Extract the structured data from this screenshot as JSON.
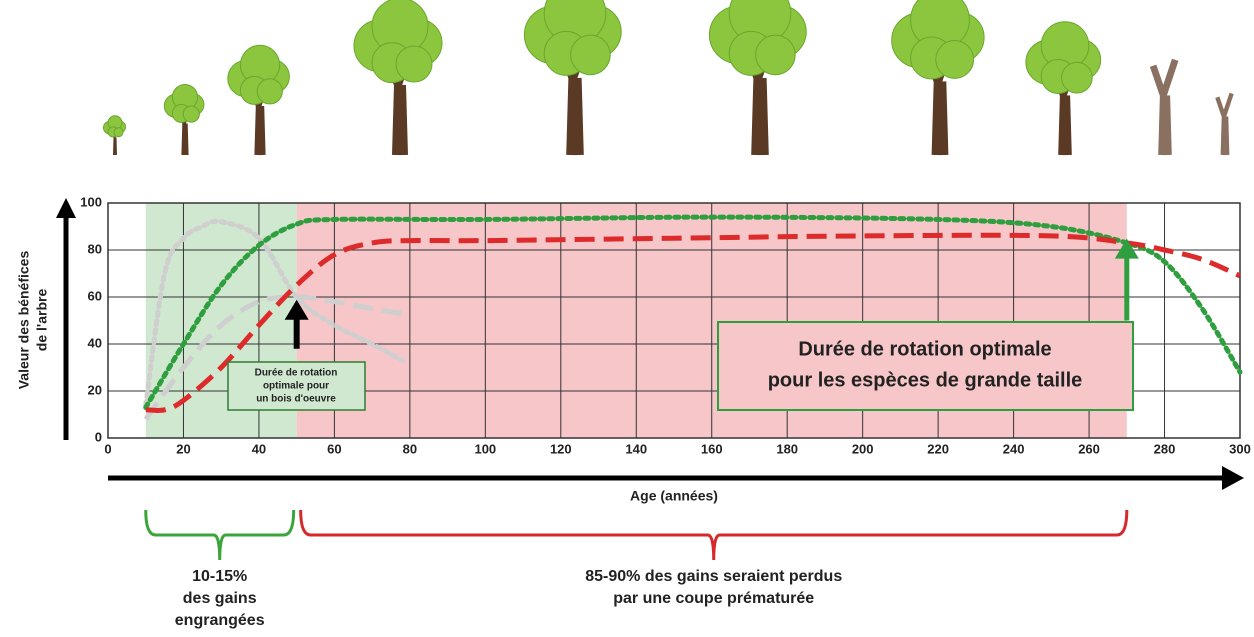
{
  "chart_data": {
    "type": "line",
    "y_label": [
      "Valeur des bénéfices",
      "de l'arbre"
    ],
    "x_label": "Age (années)",
    "xlim": [
      0,
      300
    ],
    "ylim": [
      0,
      100
    ],
    "xticks": [
      0,
      20,
      40,
      60,
      80,
      100,
      120,
      140,
      160,
      180,
      200,
      220,
      240,
      260,
      280,
      300
    ],
    "yticks": [
      0,
      20,
      40,
      60,
      80,
      100
    ],
    "grid": true,
    "regions": [
      {
        "x": [
          10,
          50
        ],
        "color": "#cfe8cf",
        "bracket_color": "#3aa53a",
        "label": [
          "10-15%",
          "des gains",
          "engrangées"
        ]
      },
      {
        "x": [
          50,
          270
        ],
        "color": "#f7c6c9",
        "bracket_color": "#d62a2a",
        "label": [
          "85-90% des gains seraient perdus",
          "par une coupe prématurée"
        ]
      }
    ],
    "series": [
      {
        "color": "#cfcfcf",
        "dash": "dot",
        "x": [
          10,
          15,
          20,
          25,
          30,
          40,
          50,
          60,
          70,
          78
        ],
        "values": [
          14,
          70,
          85,
          90,
          92,
          85,
          60,
          48,
          40,
          33
        ]
      },
      {
        "color": "#cfcfcf",
        "dash": "dash",
        "x": [
          10,
          20,
          30,
          40,
          50,
          60,
          70,
          78
        ],
        "values": [
          8,
          30,
          48,
          58,
          60,
          58,
          55,
          53
        ]
      },
      {
        "color": "#2e9e3e",
        "dash": "dot",
        "x": [
          10,
          20,
          30,
          40,
          50,
          60,
          100,
          160,
          220,
          250,
          270,
          280,
          290,
          300
        ],
        "values": [
          13,
          40,
          65,
          82,
          91,
          93,
          93,
          94,
          93,
          90,
          83,
          75,
          55,
          28
        ]
      },
      {
        "color": "#dd2a2a",
        "dash": "dash",
        "x": [
          10,
          15,
          20,
          30,
          40,
          50,
          60,
          70,
          80,
          100,
          150,
          200,
          250,
          270,
          280,
          290,
          300
        ],
        "values": [
          12,
          12,
          16,
          30,
          48,
          65,
          78,
          83,
          84,
          84,
          85,
          86,
          86,
          83,
          80,
          76,
          69
        ]
      }
    ],
    "arrows": [
      {
        "x": 50,
        "y": [
          38,
          58
        ],
        "color": "#000000",
        "label": [
          "Durée de rotation",
          "optimale pour",
          "un bois d'oeuvre"
        ]
      },
      {
        "x": 270,
        "y": [
          50,
          84
        ],
        "color": "#2e9e3e",
        "label": [
          "Durée de rotation optimale",
          "pour les espèces de grande taille"
        ]
      }
    ]
  }
}
